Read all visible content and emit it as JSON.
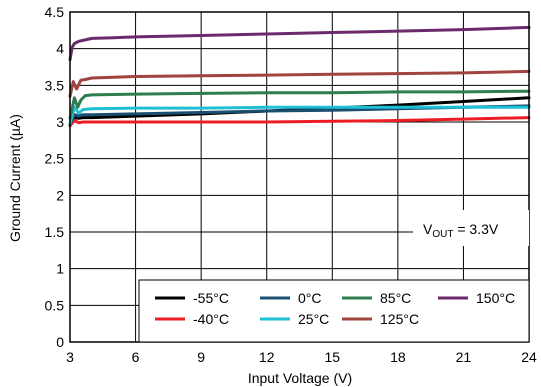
{
  "chart_data": {
    "type": "line",
    "xlabel": "Input Voltage (V)",
    "ylabel": "Ground Current (µA)",
    "xlim": [
      3,
      24
    ],
    "ylim": [
      0,
      4.5
    ],
    "xticks": [
      3,
      6,
      9,
      12,
      15,
      18,
      21,
      24
    ],
    "yticks": [
      0,
      0.5,
      1,
      1.5,
      2,
      2.5,
      3,
      3.5,
      4,
      4.5
    ],
    "xtick_labels": [
      "3",
      "6",
      "9",
      "12",
      "15",
      "18",
      "21",
      "24"
    ],
    "ytick_labels": [
      "0",
      "0.5",
      "1",
      "1.5",
      "2",
      "2.5",
      "3",
      "3.5",
      "4",
      "4.5"
    ],
    "grid": true,
    "legend_position": "bottom-right",
    "annotation": {
      "main": "V",
      "sub": "OUT",
      "rest": " = 3.3V"
    },
    "series": [
      {
        "name": "-55°C",
        "color": "#000000",
        "x": [
          3,
          3.2,
          3.4,
          3.6,
          4,
          6,
          9,
          12,
          15,
          18,
          21,
          24
        ],
        "y": [
          2.95,
          3.06,
          3.05,
          3.06,
          3.06,
          3.08,
          3.11,
          3.15,
          3.19,
          3.23,
          3.28,
          3.33
        ]
      },
      {
        "name": "-40°C",
        "color": "#ee1c25",
        "x": [
          3,
          3.2,
          3.4,
          3.6,
          4,
          6,
          9,
          12,
          15,
          18,
          21,
          24
        ],
        "y": [
          2.95,
          3.02,
          2.99,
          3.0,
          3.0,
          3.0,
          3.0,
          3.0,
          3.01,
          3.02,
          3.04,
          3.06
        ]
      },
      {
        "name": "0°C",
        "color": "#1b4f72",
        "x": [
          3,
          3.2,
          3.4,
          3.6,
          4,
          6,
          9,
          12,
          15,
          18,
          21,
          24
        ],
        "y": [
          2.97,
          3.1,
          3.08,
          3.1,
          3.1,
          3.11,
          3.13,
          3.15,
          3.16,
          3.18,
          3.2,
          3.22
        ]
      },
      {
        "name": "25°C",
        "color": "#1fbfd6",
        "x": [
          3,
          3.2,
          3.4,
          3.6,
          4,
          6,
          9,
          12,
          15,
          18,
          21,
          24
        ],
        "y": [
          2.98,
          3.2,
          3.12,
          3.17,
          3.18,
          3.19,
          3.19,
          3.2,
          3.2,
          3.2,
          3.2,
          3.2
        ]
      },
      {
        "name": "85°C",
        "color": "#2e7d4f",
        "x": [
          3,
          3.2,
          3.35,
          3.5,
          3.7,
          4,
          6,
          9,
          12,
          15,
          18,
          21,
          24
        ],
        "y": [
          3.05,
          3.33,
          3.2,
          3.3,
          3.36,
          3.37,
          3.38,
          3.39,
          3.4,
          3.4,
          3.41,
          3.41,
          3.42
        ]
      },
      {
        "name": "125°C",
        "color": "#a0443f",
        "x": [
          3,
          3.15,
          3.3,
          3.5,
          3.7,
          4,
          6,
          9,
          12,
          15,
          18,
          21,
          24
        ],
        "y": [
          3.35,
          3.55,
          3.45,
          3.57,
          3.58,
          3.6,
          3.62,
          3.63,
          3.64,
          3.65,
          3.66,
          3.67,
          3.69
        ]
      },
      {
        "name": "150°C",
        "color": "#6b2a6b",
        "x": [
          3,
          3.1,
          3.2,
          3.4,
          3.7,
          4,
          5,
          6,
          9,
          12,
          15,
          18,
          21,
          24
        ],
        "y": [
          3.85,
          4.02,
          4.07,
          4.1,
          4.12,
          4.14,
          4.15,
          4.16,
          4.18,
          4.2,
          4.22,
          4.24,
          4.26,
          4.29
        ]
      }
    ]
  }
}
